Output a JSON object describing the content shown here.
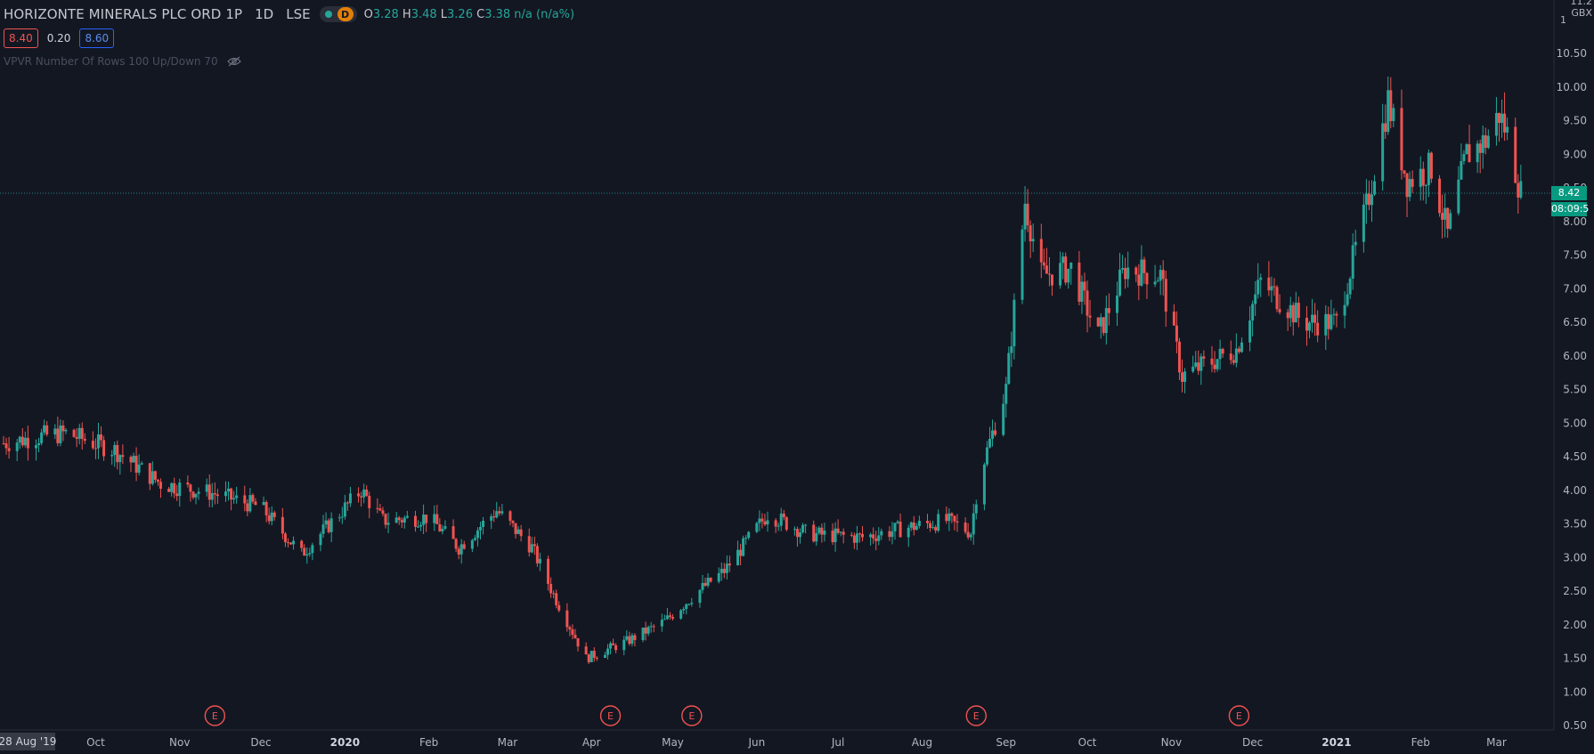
{
  "legend": {
    "symbol": "HORIZONTE MINERALS PLC ORD 1P",
    "interval": "1D",
    "exchange": "LSE",
    "badge": "D",
    "ohlc": {
      "o_label": "O",
      "o": "3.28",
      "h_label": "H",
      "h": "3.48",
      "l_label": "L",
      "l": "3.26",
      "c_label": "C",
      "c": "3.38",
      "change": "n/a (n/a%)"
    }
  },
  "spread": {
    "bid": "8.40",
    "spread": "0.20",
    "ask": "8.60"
  },
  "indicator": {
    "label": "VPVR Number Of Rows 100 Up/Down 70"
  },
  "price_scale": {
    "currency": "GBX",
    "last_price": "8.42",
    "countdown": "08:09:5"
  },
  "colors": {
    "up": "#26a69a",
    "down": "#ef5350",
    "background": "#131722",
    "event": "#ef5350"
  },
  "chart_data": {
    "type": "candlestick",
    "ylim": [
      0.5,
      11.2
    ],
    "y_ticks": [
      0.5,
      1.0,
      1.5,
      2.0,
      2.5,
      3.0,
      3.5,
      4.0,
      4.5,
      5.0,
      5.5,
      6.0,
      6.5,
      7.0,
      7.5,
      8.0,
      8.5,
      9.0,
      9.5,
      10.0,
      10.5
    ],
    "y_tick_labels": [
      "0.50",
      "1.00",
      "1.50",
      "2.00",
      "2.50",
      "3.00",
      "3.50",
      "4.00",
      "4.50",
      "5.00",
      "5.50",
      "6.00",
      "6.50",
      "7.00",
      "7.50",
      "8.00",
      "8.50",
      "9.00",
      "9.50",
      "10.00",
      "10.50"
    ],
    "y_top_partial": "11.2",
    "y_extra_label": "1",
    "x_start_date": "2019-08-28",
    "x_start_label": "28 Aug '19",
    "x_ticks": [
      {
        "label": "Oct",
        "date": "2019-10-01"
      },
      {
        "label": "Nov",
        "date": "2019-11-01"
      },
      {
        "label": "Dec",
        "date": "2019-12-01"
      },
      {
        "label": "2020",
        "date": "2020-01-01"
      },
      {
        "label": "Feb",
        "date": "2020-02-01"
      },
      {
        "label": "Mar",
        "date": "2020-03-01"
      },
      {
        "label": "Apr",
        "date": "2020-04-01"
      },
      {
        "label": "May",
        "date": "2020-05-01"
      },
      {
        "label": "Jun",
        "date": "2020-06-01"
      },
      {
        "label": "Jul",
        "date": "2020-07-01"
      },
      {
        "label": "Aug",
        "date": "2020-08-01"
      },
      {
        "label": "Sep",
        "date": "2020-09-01"
      },
      {
        "label": "Oct",
        "date": "2020-10-01"
      },
      {
        "label": "Nov",
        "date": "2020-11-01"
      },
      {
        "label": "Dec",
        "date": "2020-12-01"
      },
      {
        "label": "2021",
        "date": "2021-01-01"
      },
      {
        "label": "Feb",
        "date": "2021-02-01"
      },
      {
        "label": "Mar",
        "date": "2021-03-01"
      }
    ],
    "bold_ticks": [
      "2020",
      "2021"
    ],
    "events": [
      {
        "label": "E",
        "date": "2019-11-14"
      },
      {
        "label": "E",
        "date": "2020-04-08"
      },
      {
        "label": "E",
        "date": "2020-05-08"
      },
      {
        "label": "E",
        "date": "2020-08-21"
      },
      {
        "label": "E",
        "date": "2020-11-26"
      }
    ],
    "price_line": 8.42,
    "key_points": [
      {
        "date": "2019-08-28",
        "close": 4.7
      },
      {
        "date": "2019-09-10",
        "close": 4.8
      },
      {
        "date": "2019-09-20",
        "close": 4.85
      },
      {
        "date": "2019-10-08",
        "close": 4.6
      },
      {
        "date": "2019-10-25",
        "close": 4.1
      },
      {
        "date": "2019-11-14",
        "close": 3.95
      },
      {
        "date": "2019-12-01",
        "close": 3.75
      },
      {
        "date": "2019-12-16",
        "close": 3.05
      },
      {
        "date": "2020-01-07",
        "close": 4.0
      },
      {
        "date": "2020-01-15",
        "close": 3.55
      },
      {
        "date": "2020-02-01",
        "close": 3.6
      },
      {
        "date": "2020-02-12",
        "close": 3.15
      },
      {
        "date": "2020-02-26",
        "close": 3.7
      },
      {
        "date": "2020-03-10",
        "close": 3.15
      },
      {
        "date": "2020-03-18",
        "close": 2.45
      },
      {
        "date": "2020-03-30",
        "close": 1.5
      },
      {
        "date": "2020-04-14",
        "close": 1.75
      },
      {
        "date": "2020-04-28",
        "close": 2.05
      },
      {
        "date": "2020-05-12",
        "close": 2.55
      },
      {
        "date": "2020-05-20",
        "close": 2.8
      },
      {
        "date": "2020-06-05",
        "close": 3.65
      },
      {
        "date": "2020-06-20",
        "close": 3.35
      },
      {
        "date": "2020-07-10",
        "close": 3.3
      },
      {
        "date": "2020-07-27",
        "close": 3.45
      },
      {
        "date": "2020-08-10",
        "close": 3.55
      },
      {
        "date": "2020-08-19",
        "close": 3.38
      },
      {
        "date": "2020-08-22",
        "close": 4.2
      },
      {
        "date": "2020-09-01",
        "close": 5.5
      },
      {
        "date": "2020-09-08",
        "close": 8.3
      },
      {
        "date": "2020-09-14",
        "close": 7.2
      },
      {
        "date": "2020-09-25",
        "close": 7.3
      },
      {
        "date": "2020-10-05",
        "close": 6.3
      },
      {
        "date": "2020-10-15",
        "close": 7.3
      },
      {
        "date": "2020-10-28",
        "close": 7.2
      },
      {
        "date": "2020-11-05",
        "close": 5.7
      },
      {
        "date": "2020-11-25",
        "close": 6.1
      },
      {
        "date": "2020-12-04",
        "close": 7.1
      },
      {
        "date": "2020-12-20",
        "close": 6.5
      },
      {
        "date": "2021-01-01",
        "close": 6.5
      },
      {
        "date": "2021-01-12",
        "close": 8.2
      },
      {
        "date": "2021-01-20",
        "close": 9.8
      },
      {
        "date": "2021-01-27",
        "close": 8.6
      },
      {
        "date": "2021-02-05",
        "close": 8.8
      },
      {
        "date": "2021-02-11",
        "close": 7.8
      },
      {
        "date": "2021-02-18",
        "close": 9.0
      },
      {
        "date": "2021-02-25",
        "close": 9.2
      },
      {
        "date": "2021-03-02",
        "close": 9.6
      },
      {
        "date": "2021-03-05",
        "close": 9.3
      },
      {
        "date": "2021-03-10",
        "close": 8.42
      }
    ]
  }
}
